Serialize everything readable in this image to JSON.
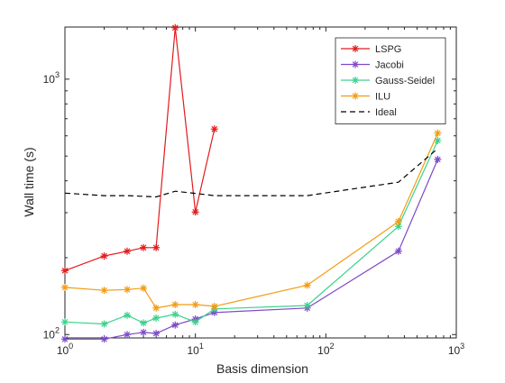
{
  "chart_data": {
    "type": "line",
    "xlabel": "Basis dimension",
    "ylabel": "Wall time (s)",
    "xscale": "log",
    "yscale": "log",
    "xlim": [
      1,
      1000
    ],
    "ylim": [
      97,
      1600
    ],
    "x_ticks": [
      {
        "value": 1,
        "base": "10",
        "exp": "0"
      },
      {
        "value": 10,
        "base": "10",
        "exp": "1"
      },
      {
        "value": 100,
        "base": "10",
        "exp": "2"
      },
      {
        "value": 1000,
        "base": "10",
        "exp": "3"
      }
    ],
    "y_ticks": [
      {
        "value": 100,
        "base": "10",
        "exp": "2"
      },
      {
        "value": 1000,
        "base": "10",
        "exp": "3"
      }
    ],
    "grid": false,
    "legend_position": "top-right",
    "series": [
      {
        "name": "LSPG",
        "color": "#e31a1c",
        "style": "solid",
        "marker": "asterisk",
        "x": [
          1,
          2,
          3,
          4,
          5,
          7,
          10,
          14
        ],
        "y": [
          178,
          203,
          212,
          219,
          219,
          1590,
          302,
          638
        ]
      },
      {
        "name": "Jacobi",
        "color": "#7e49c9",
        "style": "solid",
        "marker": "asterisk",
        "x": [
          1,
          2,
          3,
          4,
          5,
          7,
          10,
          14,
          72,
          360,
          720
        ],
        "y": [
          96,
          96,
          100,
          102,
          101,
          109,
          115,
          122,
          127,
          212,
          485
        ]
      },
      {
        "name": "Gauss-Seidel",
        "color": "#3cd28c",
        "style": "solid",
        "marker": "asterisk",
        "x": [
          1,
          2,
          3,
          4,
          5,
          7,
          10,
          14,
          72,
          360,
          720
        ],
        "y": [
          112,
          110,
          119,
          111,
          116,
          120,
          112,
          126,
          130,
          265,
          575
        ]
      },
      {
        "name": "ILU",
        "color": "#f39c12",
        "style": "solid",
        "marker": "asterisk",
        "x": [
          1,
          2,
          3,
          4,
          5,
          7,
          10,
          14,
          72,
          360,
          720
        ],
        "y": [
          153,
          149,
          150,
          152,
          127,
          131,
          131,
          129,
          156,
          277,
          615
        ]
      },
      {
        "name": "Ideal",
        "color": "#000000",
        "style": "dashed",
        "marker": "none",
        "x": [
          1,
          2,
          3,
          5,
          7,
          10,
          14,
          72,
          360,
          720
        ],
        "y": [
          358,
          350,
          350,
          346,
          364,
          357,
          350,
          350,
          395,
          535
        ]
      }
    ]
  }
}
